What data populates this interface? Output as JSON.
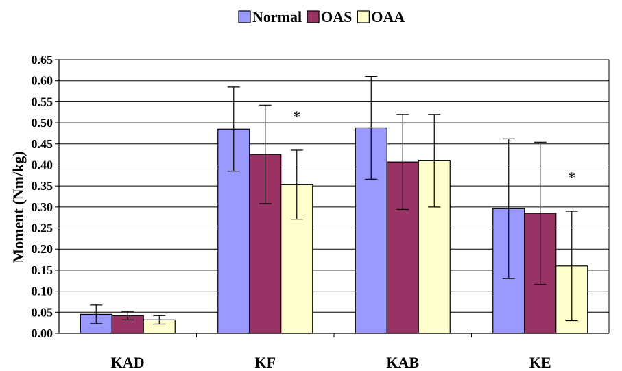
{
  "chart_data": {
    "type": "bar",
    "categories": [
      "KAD",
      "KF",
      "KAB",
      "KE"
    ],
    "series": [
      {
        "name": "Normal",
        "values": [
          0.045,
          0.485,
          0.488,
          0.296
        ],
        "errors": [
          0.022,
          0.1,
          0.122,
          0.166
        ]
      },
      {
        "name": "OAS",
        "values": [
          0.042,
          0.425,
          0.407,
          0.285
        ],
        "errors": [
          0.01,
          0.117,
          0.113,
          0.169
        ]
      },
      {
        "name": "OAA",
        "values": [
          0.032,
          0.353,
          0.41,
          0.16
        ],
        "errors": [
          0.01,
          0.082,
          0.11,
          0.13
        ]
      }
    ],
    "colors": [
      "#9999ff",
      "#993366",
      "#ffffcc"
    ],
    "significance_markers": [
      {
        "category": "KF",
        "series": "OAA",
        "text": "*"
      },
      {
        "category": "KE",
        "series": "OAA",
        "text": "*"
      }
    ],
    "ylabel": "Moment (Nm/kg)",
    "xlabel": "",
    "title": "",
    "ylim": [
      0,
      0.65
    ],
    "yticks": [
      "0.00",
      "0.05",
      "0.10",
      "0.15",
      "0.20",
      "0.25",
      "0.30",
      "0.35",
      "0.40",
      "0.45",
      "0.50",
      "0.55",
      "0.60",
      "0.65"
    ],
    "grid": true,
    "legend_position": "top-center"
  }
}
